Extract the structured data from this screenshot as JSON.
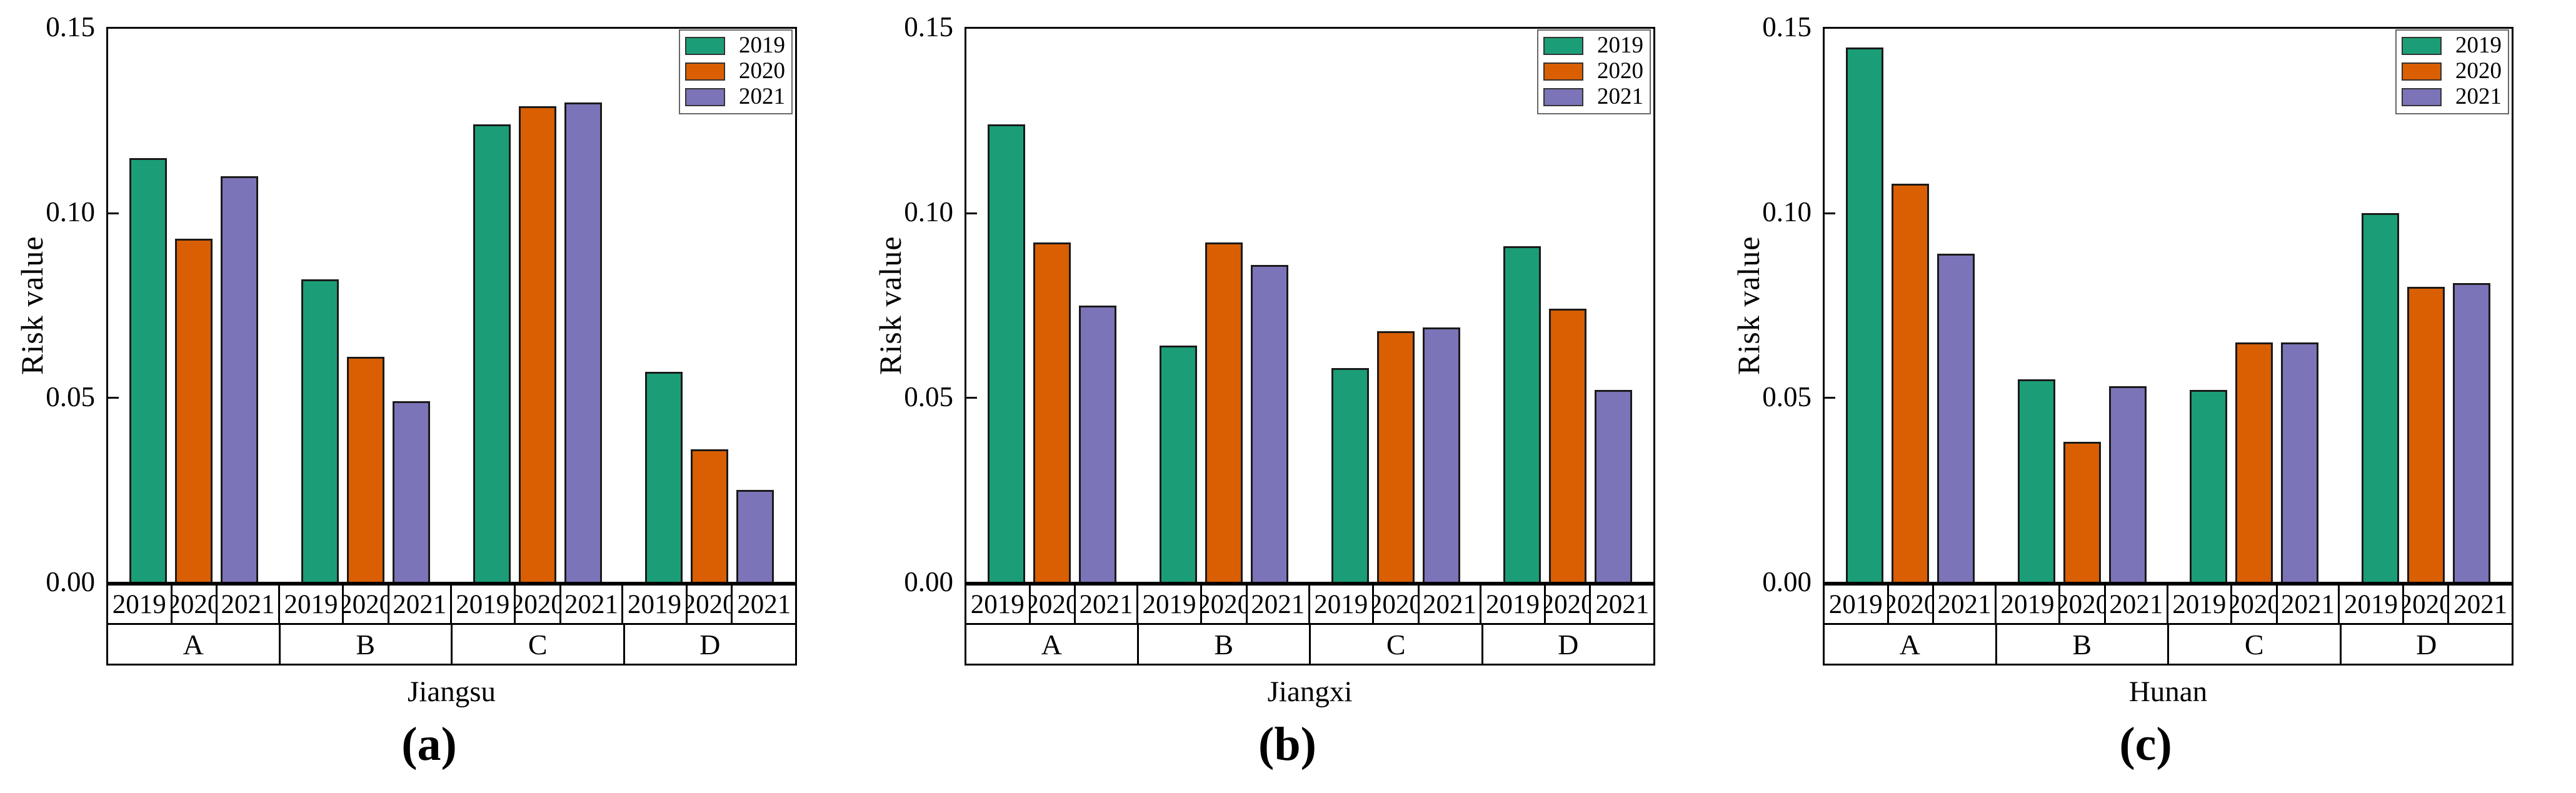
{
  "figure": {
    "background": "#ffffff",
    "text_color": "#000000",
    "bar_border_color": "#1a1a1a",
    "series_colors": {
      "2019": "#1b9e77",
      "2020": "#d95f02",
      "2021": "#7b74b8"
    }
  },
  "chart_data": [
    {
      "type": "bar",
      "panel_caption": "(a)",
      "xlabel": "Jiangsu",
      "ylabel": "Risk value",
      "ylim": [
        0,
        0.15
      ],
      "yticks": [
        "0.00",
        "0.05",
        "0.10",
        "0.15"
      ],
      "grid": false,
      "legend_position": "top-right",
      "legend": [
        "2019",
        "2020",
        "2021"
      ],
      "categories": [
        "A",
        "B",
        "C",
        "D"
      ],
      "series": [
        {
          "name": "2019",
          "values": [
            0.115,
            0.082,
            0.124,
            0.057
          ]
        },
        {
          "name": "2020",
          "values": [
            0.093,
            0.061,
            0.129,
            0.036
          ]
        },
        {
          "name": "2021",
          "values": [
            0.11,
            0.049,
            0.13,
            0.025
          ]
        }
      ]
    },
    {
      "type": "bar",
      "panel_caption": "(b)",
      "xlabel": "Jiangxi",
      "ylabel": "Risk value",
      "ylim": [
        0,
        0.15
      ],
      "yticks": [
        "0.00",
        "0.05",
        "0.10",
        "0.15"
      ],
      "grid": false,
      "legend_position": "top-right",
      "legend": [
        "2019",
        "2020",
        "2021"
      ],
      "categories": [
        "A",
        "B",
        "C",
        "D"
      ],
      "series": [
        {
          "name": "2019",
          "values": [
            0.124,
            0.064,
            0.058,
            0.091
          ]
        },
        {
          "name": "2020",
          "values": [
            0.092,
            0.092,
            0.068,
            0.074
          ]
        },
        {
          "name": "2021",
          "values": [
            0.075,
            0.086,
            0.069,
            0.052
          ]
        }
      ]
    },
    {
      "type": "bar",
      "panel_caption": "(c)",
      "xlabel": "Hunan",
      "ylabel": "Risk value",
      "ylim": [
        0,
        0.15
      ],
      "yticks": [
        "0.00",
        "0.05",
        "0.10",
        "0.15"
      ],
      "grid": false,
      "legend_position": "top-right",
      "legend": [
        "2019",
        "2020",
        "2021"
      ],
      "categories": [
        "A",
        "B",
        "C",
        "D"
      ],
      "series": [
        {
          "name": "2019",
          "values": [
            0.145,
            0.055,
            0.052,
            0.1
          ]
        },
        {
          "name": "2020",
          "values": [
            0.108,
            0.038,
            0.065,
            0.08
          ]
        },
        {
          "name": "2021",
          "values": [
            0.089,
            0.053,
            0.065,
            0.081
          ]
        }
      ]
    }
  ]
}
